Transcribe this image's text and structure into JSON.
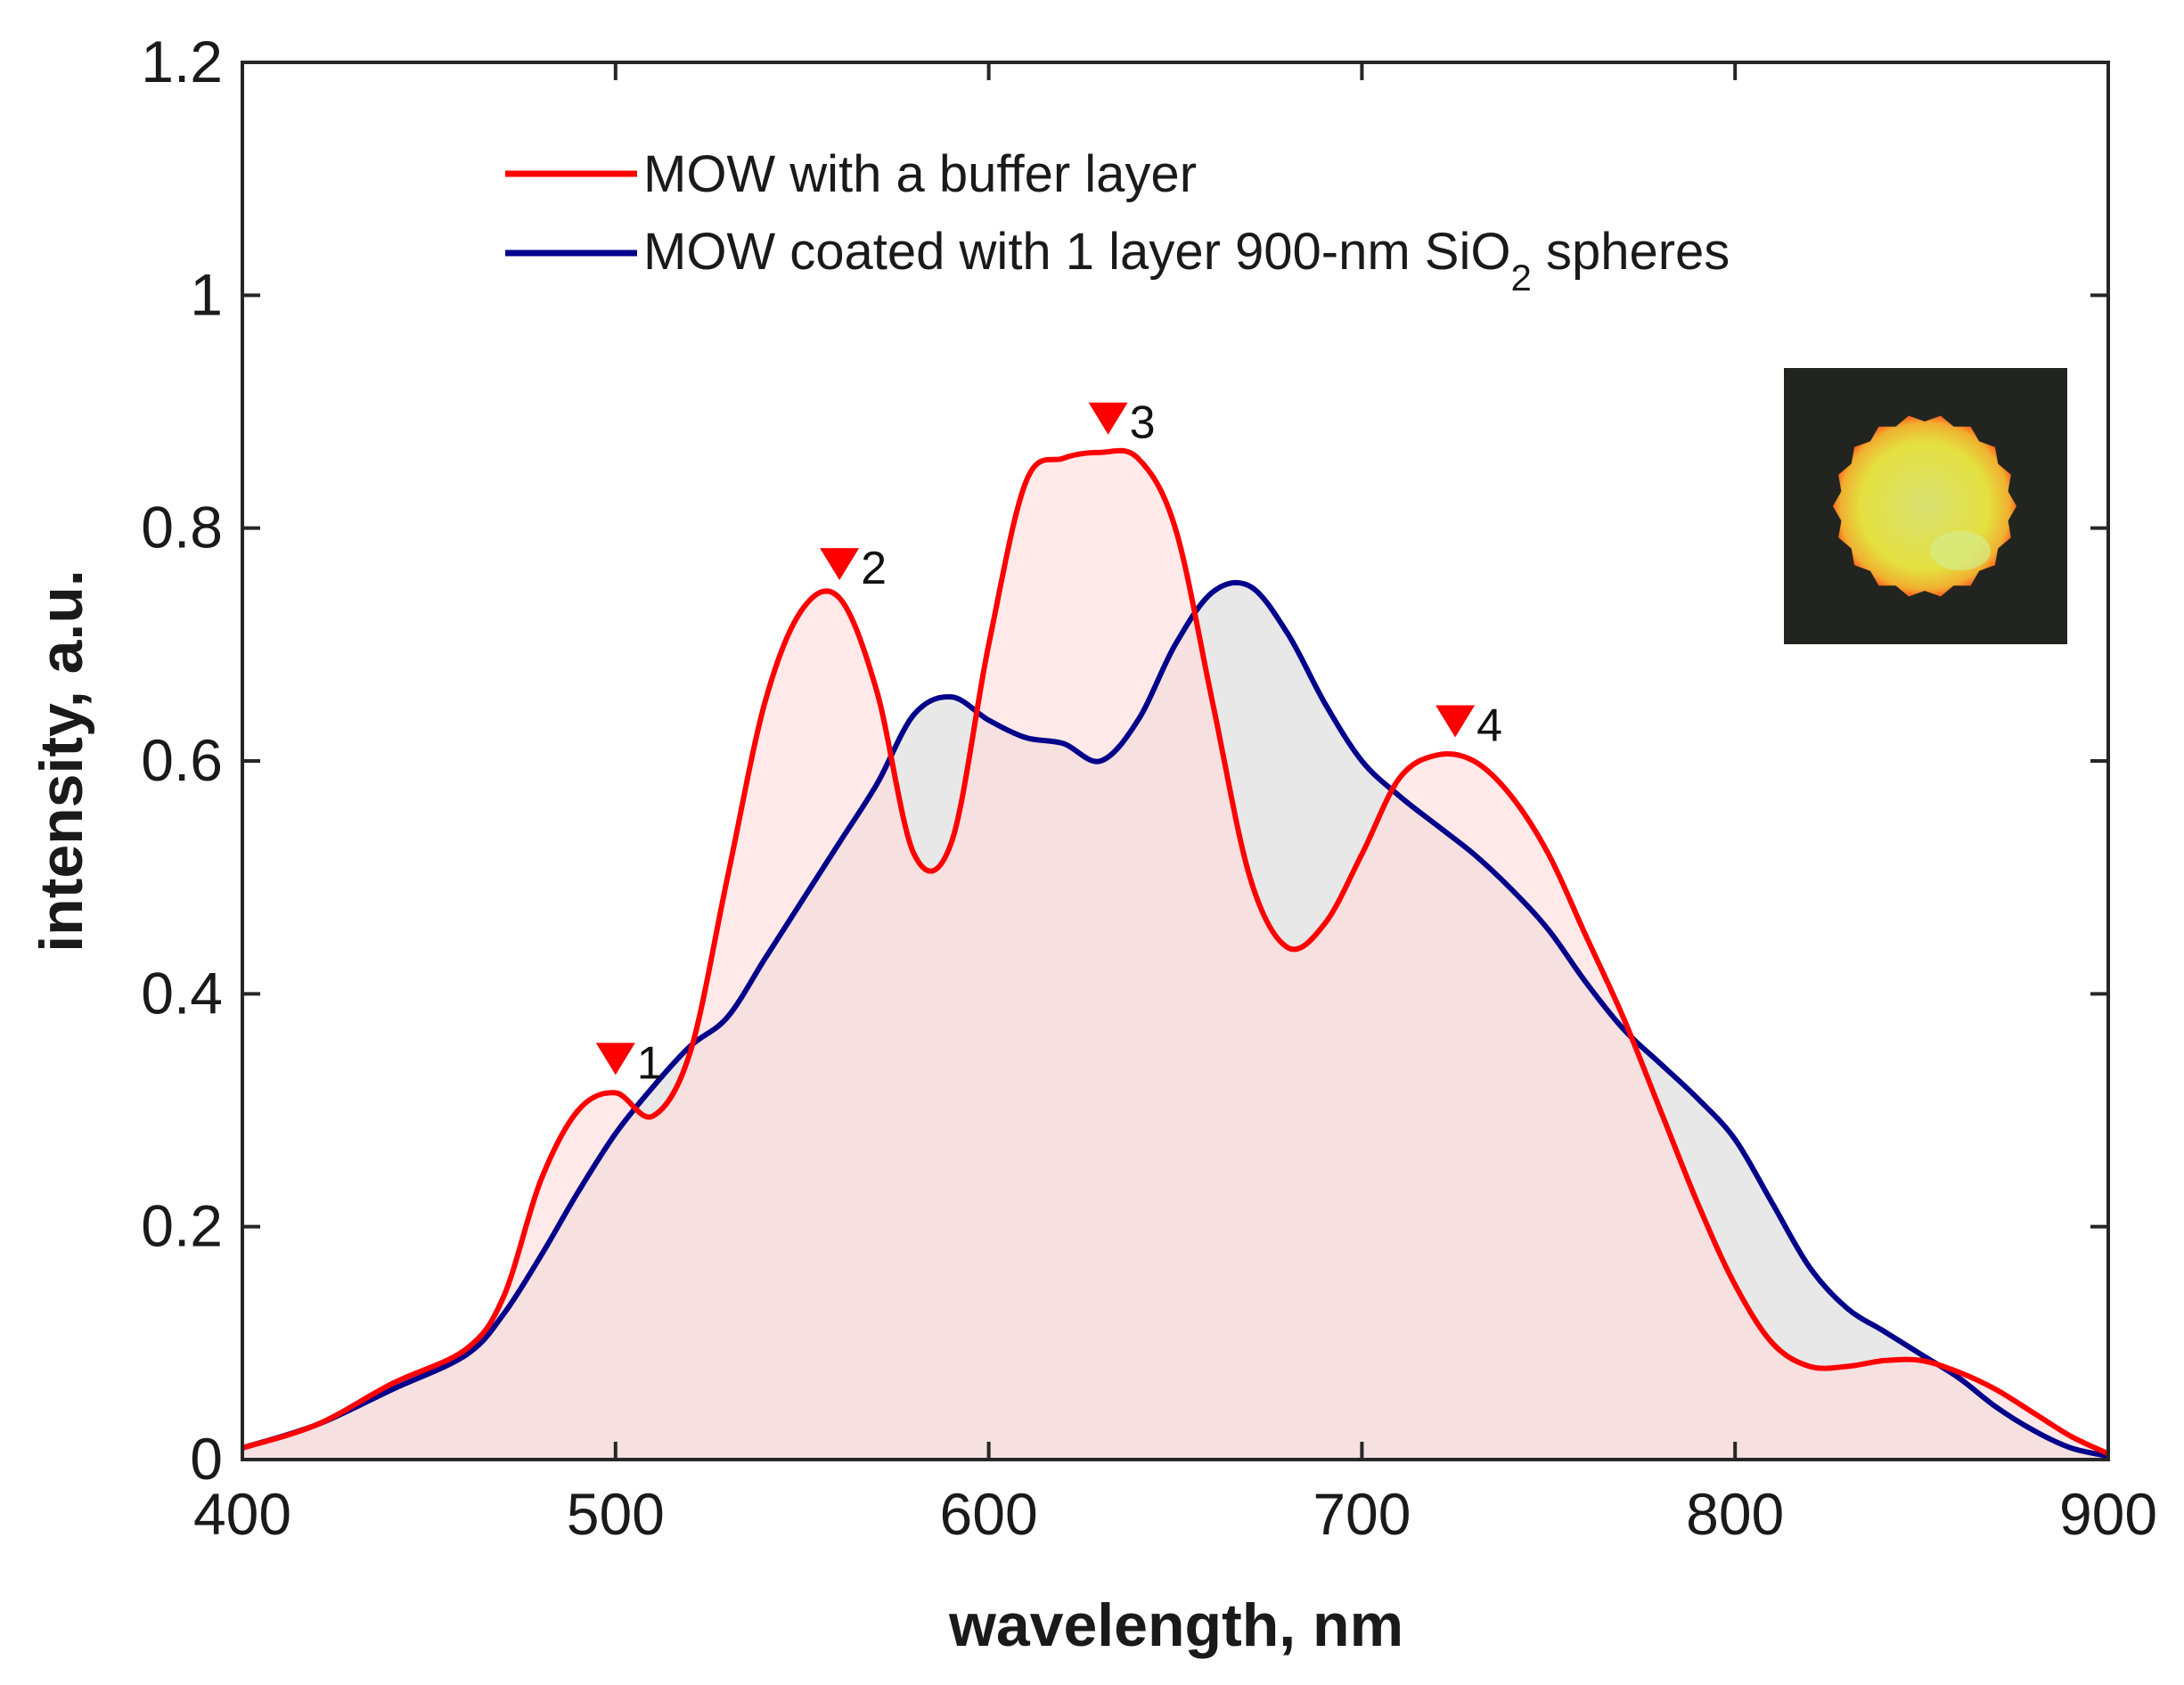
{
  "chart_data": {
    "type": "area",
    "title": "",
    "xlabel": "wavelength, nm",
    "ylabel": "intensity, a.u.",
    "xlim": [
      400,
      900
    ],
    "ylim": [
      0,
      1.2
    ],
    "grid": false,
    "legend_position": "top-center",
    "x_ticks": [
      "400",
      "500",
      "600",
      "700",
      "800",
      "900"
    ],
    "y_ticks": [
      "0",
      "0.2",
      "0.4",
      "0.6",
      "0.8",
      "1",
      "1.2"
    ],
    "series": [
      {
        "name": "MOW with a buffer layer",
        "color": "#ff0000",
        "fill": "#ffdada",
        "x": [
          400,
          420,
          440,
          460,
          470,
          480,
          490,
          500,
          510,
          520,
          530,
          540,
          550,
          560,
          570,
          580,
          590,
          600,
          610,
          620,
          630,
          640,
          650,
          660,
          670,
          680,
          690,
          700,
          710,
          720,
          730,
          740,
          750,
          760,
          770,
          780,
          790,
          800,
          810,
          820,
          830,
          840,
          850,
          860,
          870,
          880,
          890,
          900
        ],
        "y": [
          0.01,
          0.03,
          0.065,
          0.095,
          0.14,
          0.24,
          0.3,
          0.315,
          0.295,
          0.35,
          0.5,
          0.65,
          0.73,
          0.74,
          0.66,
          0.52,
          0.53,
          0.7,
          0.84,
          0.86,
          0.865,
          0.86,
          0.8,
          0.65,
          0.5,
          0.44,
          0.46,
          0.52,
          0.585,
          0.605,
          0.6,
          0.57,
          0.52,
          0.45,
          0.38,
          0.3,
          0.22,
          0.15,
          0.1,
          0.08,
          0.08,
          0.085,
          0.085,
          0.075,
          0.06,
          0.04,
          0.02,
          0.005
        ]
      },
      {
        "name": "MOW coated with 1 layer 900-nm SiO",
        "name_subscript": "2",
        "name_suffix": " spheres",
        "color": "#00008b",
        "fill": "#e5e5e5",
        "x": [
          400,
          420,
          440,
          460,
          470,
          480,
          490,
          500,
          510,
          520,
          530,
          540,
          550,
          560,
          570,
          580,
          590,
          600,
          610,
          620,
          630,
          640,
          650,
          660,
          670,
          680,
          690,
          700,
          710,
          720,
          730,
          740,
          750,
          760,
          770,
          780,
          790,
          800,
          810,
          820,
          830,
          840,
          850,
          860,
          870,
          880,
          890,
          900
        ],
        "y": [
          0.01,
          0.03,
          0.06,
          0.09,
          0.125,
          0.175,
          0.23,
          0.28,
          0.32,
          0.355,
          0.38,
          0.43,
          0.48,
          0.53,
          0.58,
          0.64,
          0.655,
          0.635,
          0.62,
          0.615,
          0.6,
          0.635,
          0.7,
          0.745,
          0.75,
          0.71,
          0.65,
          0.6,
          0.57,
          0.545,
          0.52,
          0.49,
          0.455,
          0.41,
          0.37,
          0.34,
          0.31,
          0.275,
          0.22,
          0.165,
          0.13,
          0.11,
          0.09,
          0.07,
          0.045,
          0.025,
          0.01,
          0.003
        ]
      }
    ],
    "peaks": [
      {
        "label": "1",
        "x": 500,
        "y": 0.315
      },
      {
        "label": "2",
        "x": 560,
        "y": 0.74
      },
      {
        "label": "3",
        "x": 632,
        "y": 0.865
      },
      {
        "label": "4",
        "x": 725,
        "y": 0.605
      }
    ],
    "inset": "photo-glowing-yellow-disc",
    "marker_color": "#ff0000"
  }
}
